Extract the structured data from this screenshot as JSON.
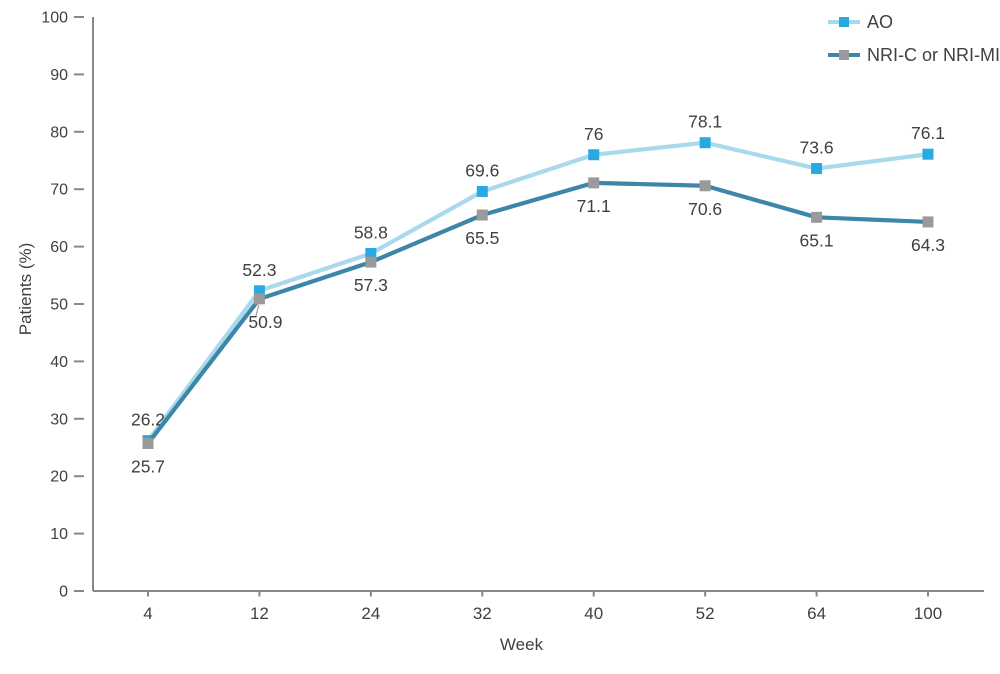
{
  "chart_data": {
    "type": "line",
    "title": "",
    "xlabel": "Week",
    "ylabel": "Patients (%)",
    "x_categories": [
      "4",
      "12",
      "24",
      "32",
      "40",
      "52",
      "64",
      "100"
    ],
    "y_ticks": [
      "0",
      "10",
      "20",
      "30",
      "40",
      "50",
      "60",
      "70",
      "80",
      "90",
      "100"
    ],
    "ylim": [
      0,
      100
    ],
    "grid": false,
    "legend_position": "top-right",
    "series": [
      {
        "name": "AO",
        "values": [
          26.2,
          52.3,
          58.8,
          69.6,
          76,
          78.1,
          73.6,
          76.1
        ],
        "point_labels": [
          "26.2",
          "52.3",
          "58.8",
          "69.6",
          "76",
          "78.1",
          "73.6",
          "76.1"
        ],
        "label_position": "above",
        "line_color": "#a9d9ed",
        "marker_color": "#29a9e1",
        "marker_shape": "square"
      },
      {
        "name": "NRI-C or NRI-MI",
        "values": [
          25.7,
          50.9,
          57.3,
          65.5,
          71.1,
          70.6,
          65.1,
          64.3
        ],
        "point_labels": [
          "25.7",
          "50.9",
          "57.3",
          "65.5",
          "71.1",
          "70.6",
          "65.1",
          "64.3"
        ],
        "label_position": "below",
        "line_color": "#3e86a8",
        "marker_color": "#9a9a9a",
        "marker_shape": "square"
      }
    ],
    "annotations": [
      {
        "type": "leader-line",
        "series_index": 1,
        "point_index": 1,
        "color": "#9a9a9a"
      }
    ],
    "axis_color": "#87888a",
    "text_color": "#414042"
  },
  "legend": {
    "items": [
      {
        "label": "AO"
      },
      {
        "label": "NRI-C or NRI-MI"
      }
    ]
  }
}
